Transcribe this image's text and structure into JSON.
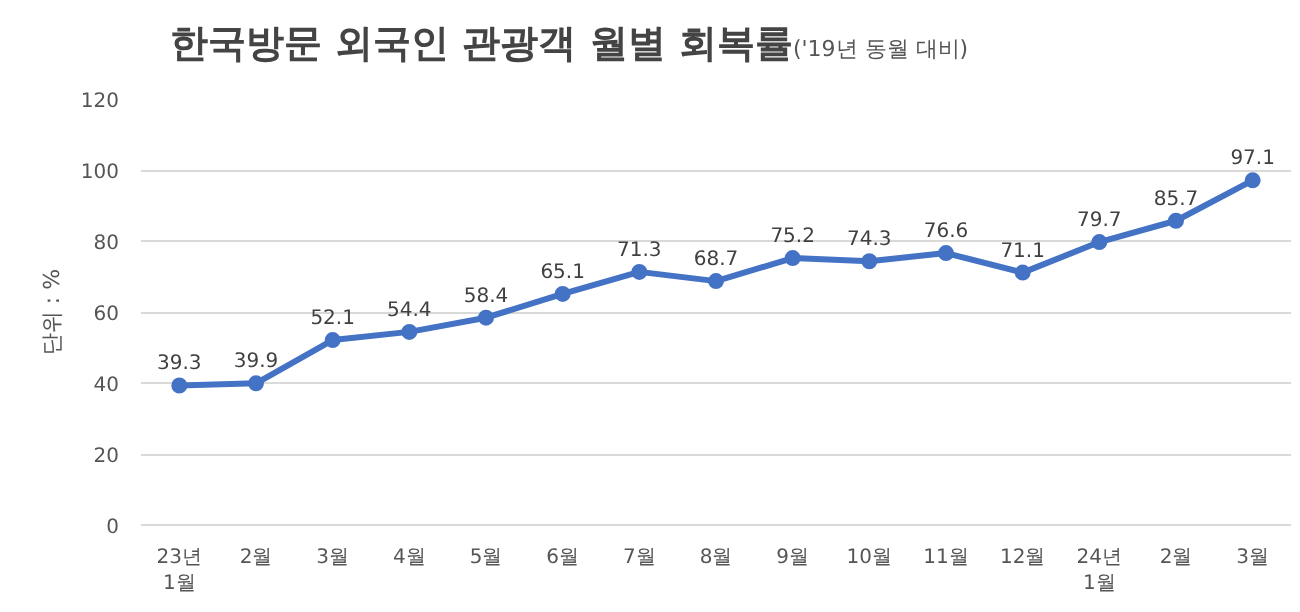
{
  "chart_data": {
    "type": "line",
    "title": "한국방문 외국인 관광객 월별 회복률",
    "subtitle": "('19년 동월 대비)",
    "ylabel": "단위 : %",
    "categories": [
      "23년\n1월",
      "2월",
      "3월",
      "4월",
      "5월",
      "6월",
      "7월",
      "8월",
      "9월",
      "10월",
      "11월",
      "12월",
      "24년\n1월",
      "2월",
      "3월"
    ],
    "series": [
      {
        "color": "#4472c4",
        "values": [
          39.3,
          39.9,
          52.1,
          54.4,
          58.4,
          65.1,
          71.3,
          68.7,
          75.2,
          74.3,
          76.6,
          71.1,
          79.7,
          85.7,
          97.1
        ]
      }
    ],
    "ylim": [
      0,
      120
    ],
    "yticks": [
      0,
      20,
      40,
      60,
      80,
      100,
      120
    ],
    "grid": "y",
    "marker": "circle",
    "line_style": "solid",
    "data_labels": true
  }
}
